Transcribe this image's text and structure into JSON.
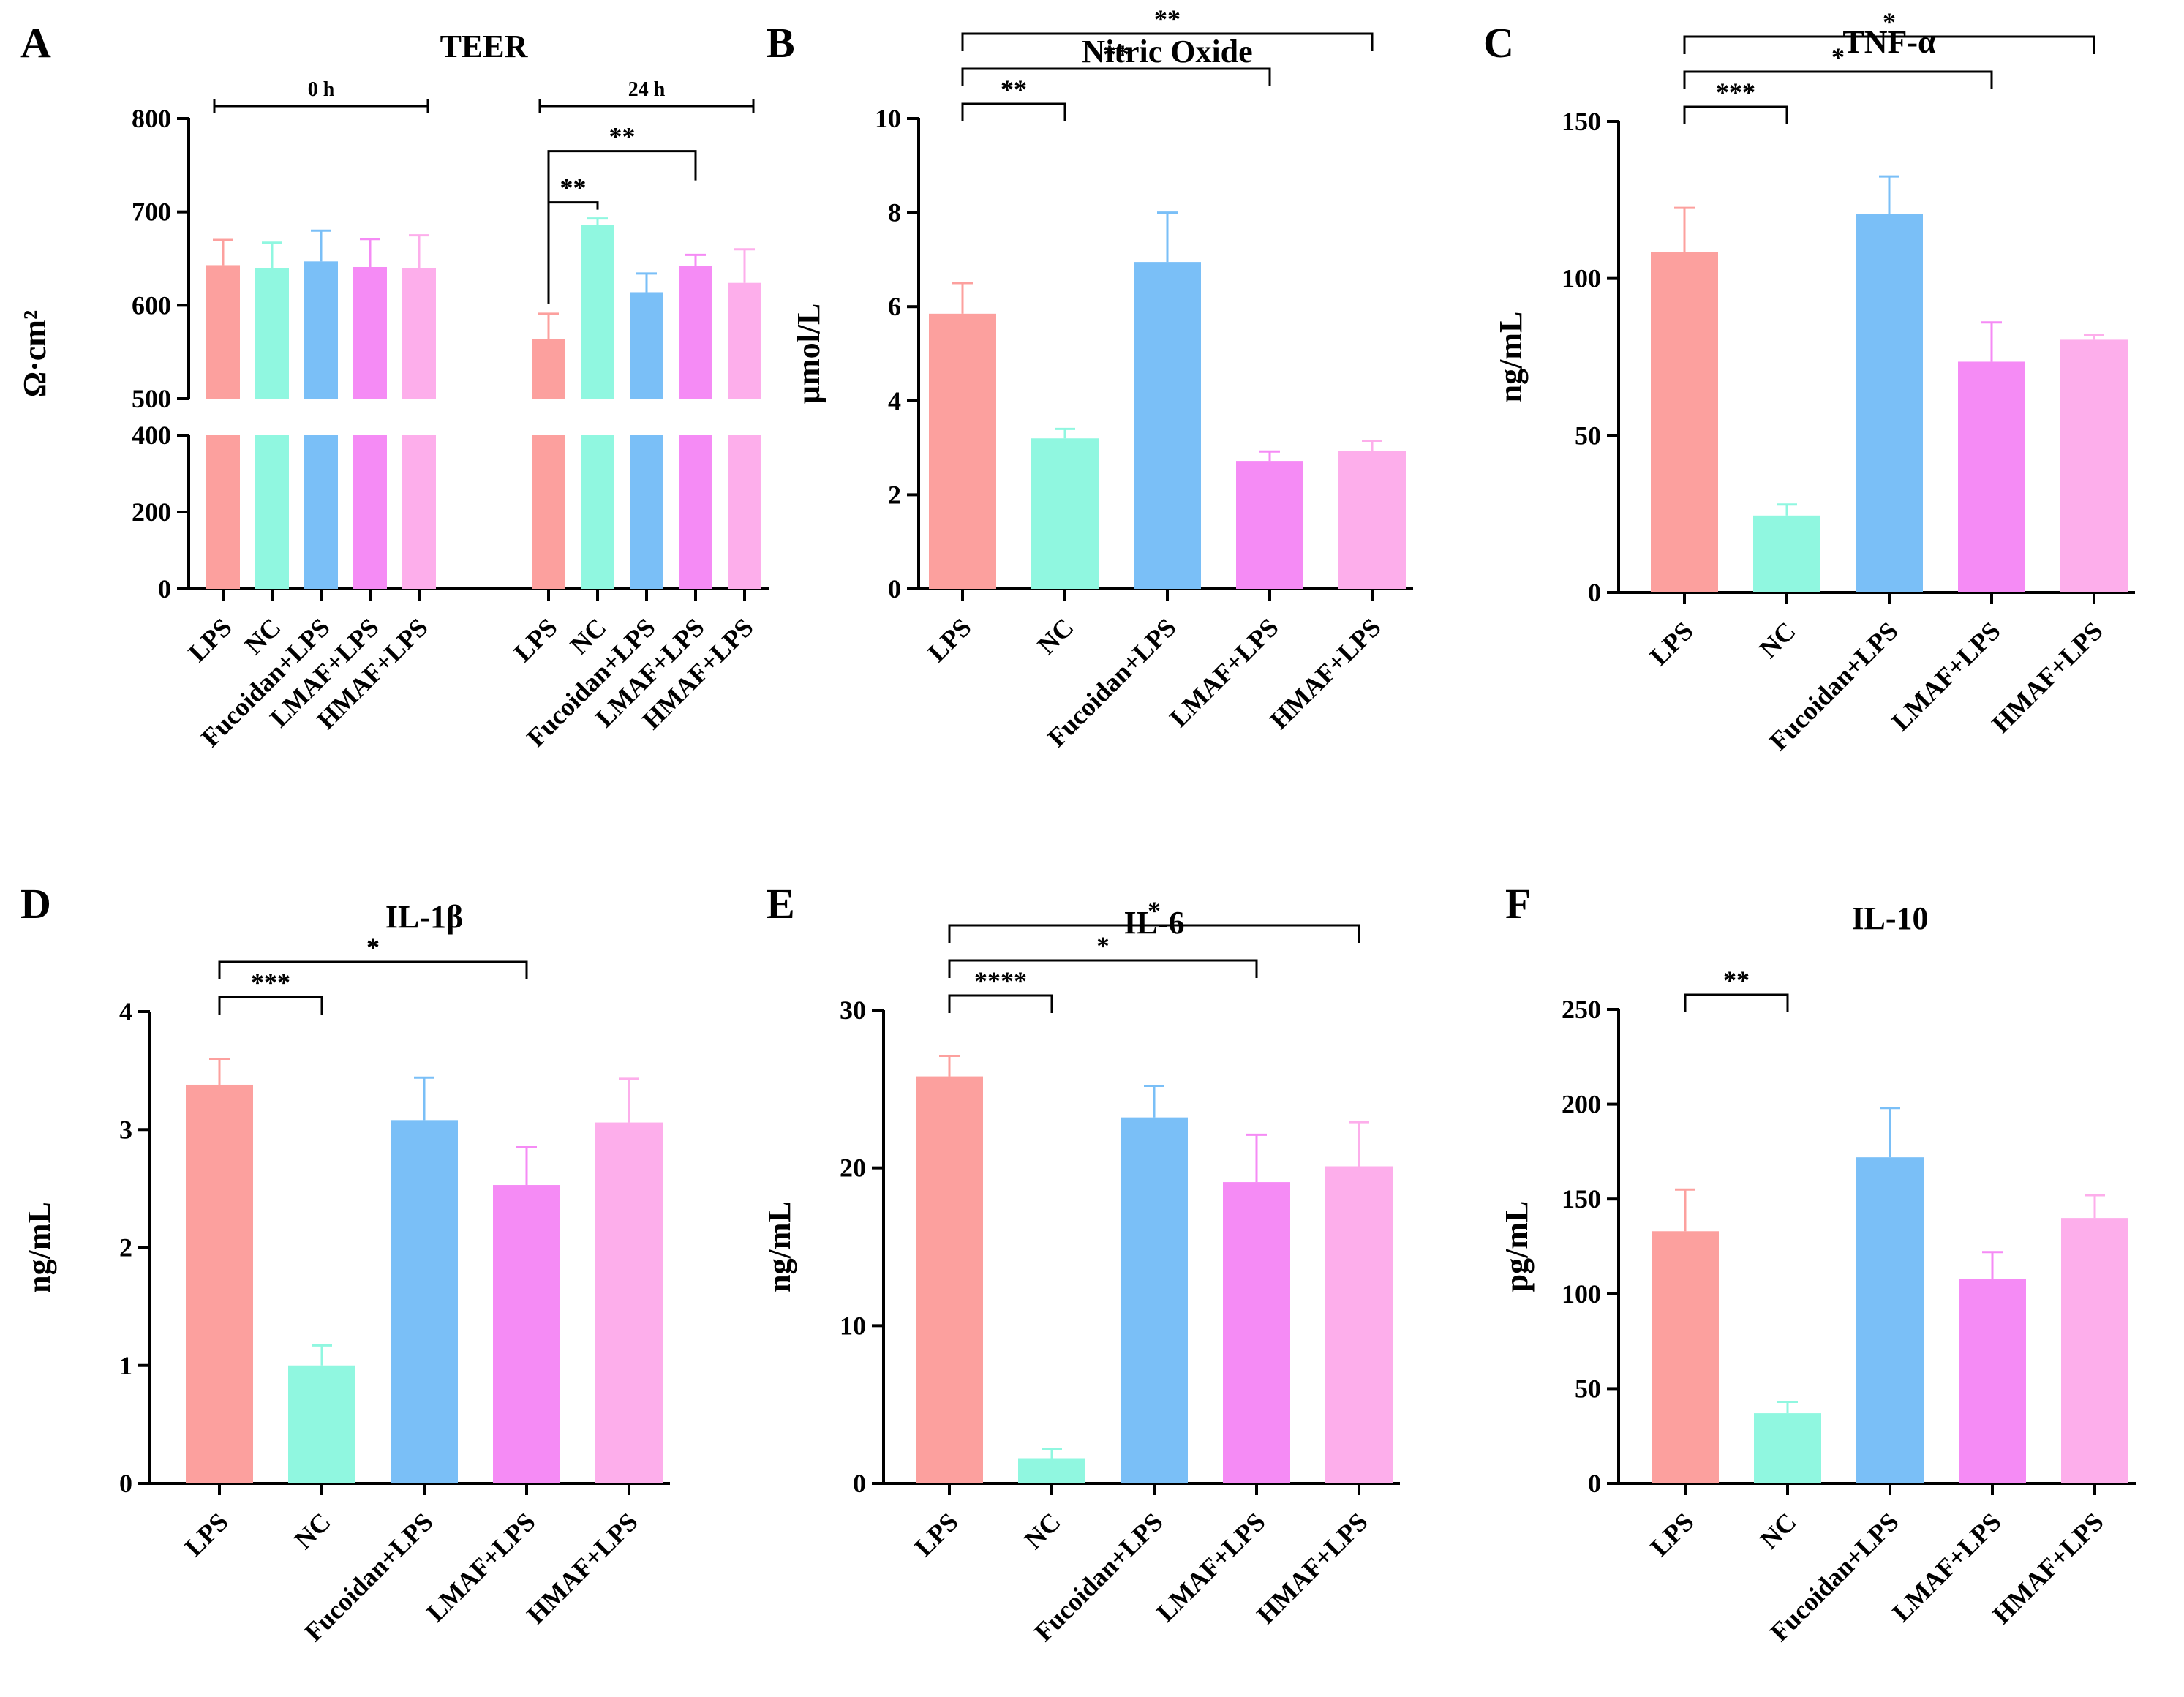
{
  "colors": {
    "LPS": "#FCA09E",
    "NC": "#90F7E0",
    "Fucoidan+LPS": "#7ABFF7",
    "LMAF+LPS": "#F58BF5",
    "HMAF+LPS": "#FDAEEB"
  },
  "chart_data": [
    {
      "panel": "A",
      "type": "bar",
      "title": "TEER",
      "ylabel": "Ω·cm²",
      "groups": [
        {
          "label": "0 h",
          "categories": [
            "LPS",
            "NC",
            "Fucoidan+LPS",
            "LMAF+LPS",
            "HMAF+LPS"
          ],
          "values": [
            643,
            640,
            647,
            641,
            640
          ],
          "errors": [
            27,
            27,
            33,
            30,
            35
          ]
        },
        {
          "label": "24 h",
          "categories": [
            "LPS",
            "NC",
            "Fucoidan+LPS",
            "LMAF+LPS",
            "HMAF+LPS"
          ],
          "values": [
            564,
            686,
            614,
            642,
            624
          ],
          "errors": [
            27,
            7,
            20,
            12,
            36
          ]
        }
      ],
      "axis_break": {
        "lower": [
          0,
          400
        ],
        "upper": [
          500,
          800
        ]
      },
      "yticks_lower": [
        0,
        200,
        400
      ],
      "yticks_upper": [
        500,
        600,
        700,
        800
      ],
      "significance": [
        {
          "group": 1,
          "from": 0,
          "to": 1,
          "label": "**"
        },
        {
          "group": 1,
          "from": 0,
          "to": 3,
          "label": "**"
        }
      ]
    },
    {
      "panel": "B",
      "type": "bar",
      "title": "Nitric Oxide",
      "ylabel": "µmol/L",
      "categories": [
        "LPS",
        "NC",
        "Fucoidan+LPS",
        "LMAF+LPS",
        "HMAF+LPS"
      ],
      "values": [
        5.85,
        3.2,
        6.95,
        2.72,
        2.93
      ],
      "errors": [
        0.65,
        0.2,
        1.05,
        0.2,
        0.22
      ],
      "ylim": [
        0,
        10
      ],
      "yticks": [
        0,
        2,
        4,
        6,
        8,
        10
      ],
      "significance": [
        {
          "from": 0,
          "to": 1,
          "label": "**"
        },
        {
          "from": 0,
          "to": 3,
          "label": "**"
        },
        {
          "from": 0,
          "to": 4,
          "label": "**"
        }
      ]
    },
    {
      "panel": "C",
      "type": "bar",
      "title": "TNF-α",
      "ylabel": "ng/mL",
      "categories": [
        "LPS",
        "NC",
        "Fucoidan+LPS",
        "LMAF+LPS",
        "HMAF+LPS"
      ],
      "values": [
        108.5,
        24.5,
        120.5,
        73.5,
        80.5
      ],
      "errors": [
        14,
        3.5,
        12,
        12.5,
        1.5
      ],
      "ylim": [
        0,
        150
      ],
      "yticks": [
        0,
        50,
        100,
        150
      ],
      "significance": [
        {
          "from": 0,
          "to": 1,
          "label": "***"
        },
        {
          "from": 0,
          "to": 3,
          "label": "*"
        },
        {
          "from": 0,
          "to": 4,
          "label": "*"
        }
      ]
    },
    {
      "panel": "D",
      "type": "bar",
      "title": "IL-1β",
      "ylabel": "ng/mL",
      "categories": [
        "LPS",
        "NC",
        "Fucoidan+LPS",
        "LMAF+LPS",
        "HMAF+LPS"
      ],
      "values": [
        3.38,
        1.0,
        3.08,
        2.53,
        3.06
      ],
      "errors": [
        0.22,
        0.17,
        0.36,
        0.32,
        0.37
      ],
      "ylim": [
        0,
        4
      ],
      "yticks": [
        0,
        1,
        2,
        3,
        4
      ],
      "significance": [
        {
          "from": 0,
          "to": 1,
          "label": "***"
        },
        {
          "from": 0,
          "to": 3,
          "label": "*"
        }
      ]
    },
    {
      "panel": "E",
      "type": "bar",
      "title": "IL-6",
      "ylabel": "ng/mL",
      "categories": [
        "LPS",
        "NC",
        "Fucoidan+LPS",
        "LMAF+LPS",
        "HMAF+LPS"
      ],
      "values": [
        25.8,
        1.6,
        23.2,
        19.1,
        20.1
      ],
      "errors": [
        1.3,
        0.6,
        2.0,
        3.0,
        2.8
      ],
      "ylim": [
        0,
        30
      ],
      "yticks": [
        0,
        10,
        20,
        30
      ],
      "significance": [
        {
          "from": 0,
          "to": 1,
          "label": "****"
        },
        {
          "from": 0,
          "to": 3,
          "label": "*"
        },
        {
          "from": 0,
          "to": 4,
          "label": "*"
        }
      ]
    },
    {
      "panel": "F",
      "type": "bar",
      "title": "IL-10",
      "ylabel": "pg/mL",
      "categories": [
        "LPS",
        "NC",
        "Fucoidan+LPS",
        "LMAF+LPS",
        "HMAF+LPS"
      ],
      "values": [
        133,
        37,
        172,
        108,
        140
      ],
      "errors": [
        22,
        6,
        26,
        14,
        12
      ],
      "ylim": [
        0,
        250
      ],
      "yticks": [
        0,
        50,
        100,
        150,
        200,
        250
      ],
      "significance": [
        {
          "from": 0,
          "to": 1,
          "label": "**"
        }
      ]
    }
  ]
}
